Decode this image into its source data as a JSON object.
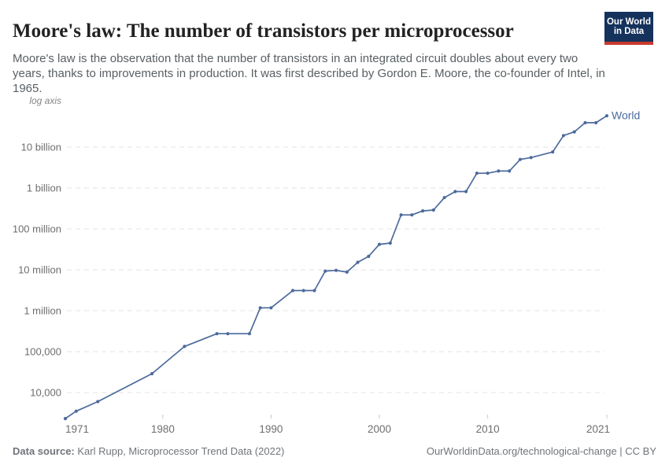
{
  "logo": {
    "line1": "Our World",
    "line2": "in Data"
  },
  "chart_data": {
    "type": "line",
    "title": "Moore's law: The number of transistors per microprocessor",
    "subtitle": "Moore's law is the observation that the number of transistors in an integrated circuit doubles about every two years, thanks to improvements in production. It was first described by Gordon E. Moore, the co-founder of Intel, in 1965.",
    "axis_note": "log axis",
    "y_scale": "log",
    "grid": "dashed horizontal gridlines",
    "legend_position": "label at end of line",
    "x_range": [
      1971,
      2021
    ],
    "x_ticks": [
      1971,
      1980,
      1990,
      2000,
      2010,
      2021
    ],
    "y_ticks": [
      {
        "value": 10000,
        "label": "10,000"
      },
      {
        "value": 100000,
        "label": "100,000"
      },
      {
        "value": 1000000,
        "label": "1 million"
      },
      {
        "value": 10000000,
        "label": "10 million"
      },
      {
        "value": 100000000,
        "label": "100 million"
      },
      {
        "value": 1000000000,
        "label": "1 billion"
      },
      {
        "value": 10000000000,
        "label": "10 billion"
      }
    ],
    "series": [
      {
        "name": "World",
        "color": "#4C6A9C",
        "points": [
          [
            1971,
            2308
          ],
          [
            1972,
            3500
          ],
          [
            1974,
            6000
          ],
          [
            1979,
            29000
          ],
          [
            1982,
            134000
          ],
          [
            1985,
            275000
          ],
          [
            1986,
            275000
          ],
          [
            1988,
            275000
          ],
          [
            1989,
            1180235
          ],
          [
            1990,
            1180235
          ],
          [
            1992,
            3100000
          ],
          [
            1993,
            3100000
          ],
          [
            1994,
            3100000
          ],
          [
            1995,
            9300000
          ],
          [
            1996,
            9700000
          ],
          [
            1997,
            8800000
          ],
          [
            1998,
            15200000
          ],
          [
            1999,
            21300000
          ],
          [
            2000,
            42000000
          ],
          [
            2001,
            45000000
          ],
          [
            2002,
            220000000
          ],
          [
            2003,
            220000000
          ],
          [
            2004,
            276000000
          ],
          [
            2005,
            290000000
          ],
          [
            2006,
            582000000
          ],
          [
            2007,
            820000000
          ],
          [
            2008,
            820000000
          ],
          [
            2009,
            2300000000
          ],
          [
            2010,
            2300000000
          ],
          [
            2011,
            2600000000
          ],
          [
            2012,
            2600000000
          ],
          [
            2013,
            5000000000
          ],
          [
            2014,
            5560000000
          ],
          [
            2016,
            7600000000
          ],
          [
            2017,
            19200000000
          ],
          [
            2018,
            23600000000
          ],
          [
            2019,
            39540000000
          ],
          [
            2020,
            39540000000
          ],
          [
            2021,
            58200000000
          ]
        ]
      }
    ],
    "colors": {
      "line": "#4C6A9C",
      "gridline": "#e3e3e3",
      "tick_text": "#6e6e6e",
      "logo_navy": "#14325C",
      "logo_red": "#C8392F"
    }
  },
  "footer": {
    "source_label": "Data source:",
    "source_text": "Karl Rupp, Microprocessor Trend Data (2022)",
    "license_text": "OurWorldinData.org/technological-change | CC BY"
  }
}
